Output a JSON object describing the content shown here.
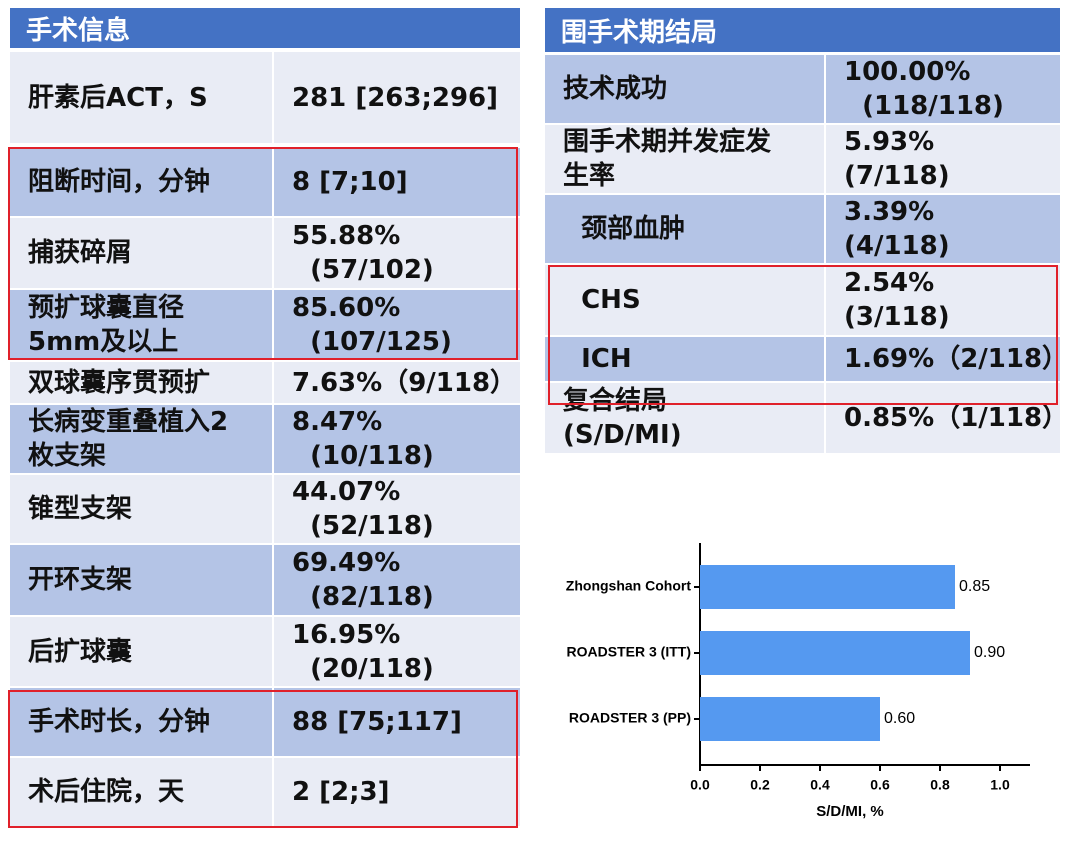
{
  "left_table": {
    "title": "手术信息",
    "rows": [
      [
        "肝素后ACT，S",
        "281 [263;296]"
      ],
      [
        "阻断时间，分钟",
        "8 [7;10]"
      ],
      [
        "捕获碎屑",
        "55.88%\n  (57/102)"
      ],
      [
        "预扩球囊直径\n5mm及以上",
        "85.60%\n  (107/125)"
      ],
      [
        "双球囊序贯预扩",
        "7.63%（9/118）"
      ],
      [
        "长病变重叠植入2\n枚支架",
        "8.47%\n  (10/118)"
      ],
      [
        "锥型支架",
        "44.07%\n  (52/118)"
      ],
      [
        "开环支架",
        "69.49%\n  (82/118)"
      ],
      [
        "后扩球囊",
        "16.95%\n  (20/118)"
      ],
      [
        "手术时长，分钟",
        "88 [75;117]"
      ],
      [
        "术后住院，天",
        "2 [2;3]"
      ]
    ]
  },
  "right_table": {
    "title": "围手术期结局",
    "rows": [
      [
        "技术成功",
        "100.00%\n  (118/118)"
      ],
      [
        "围手术期并发症发\n生率",
        "5.93%\n(7/118)"
      ],
      [
        "  颈部血肿",
        "3.39%\n(4/118)"
      ],
      [
        "  CHS",
        "2.54%\n(3/118)"
      ],
      [
        "  ICH",
        "1.69%（2/118）"
      ],
      [
        "复合结局\n(S/D/MI)",
        "0.85%（1/118）"
      ]
    ]
  },
  "chart_data": {
    "type": "bar",
    "orientation": "horizontal",
    "x_label": "S/D/MI, %",
    "categories": [
      "Zhongshan Cohort",
      "ROADSTER 3 (ITT)",
      "ROADSTER 3 (PP)"
    ],
    "values": [
      0.85,
      0.9,
      0.6
    ],
    "value_labels": [
      "0.85",
      "0.90",
      "0.60"
    ],
    "color": "#5599f0",
    "xlim": [
      0,
      1.1
    ],
    "xticks": [
      {
        "value": 0,
        "label": "0.0"
      },
      {
        "value": 0.2,
        "label": "0.2"
      },
      {
        "value": 0.4,
        "label": "0.4"
      },
      {
        "value": 0.6,
        "label": "0.6"
      },
      {
        "value": 0.8,
        "label": "0.8"
      },
      {
        "value": 1,
        "label": "1.0"
      }
    ]
  }
}
